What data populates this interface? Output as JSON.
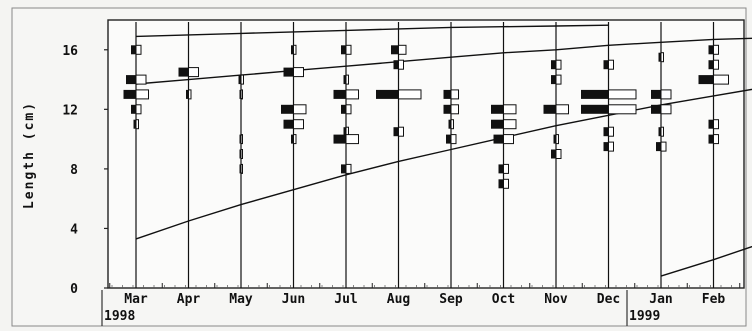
{
  "chart_data": {
    "type": "length-frequency histogram with growth curves",
    "ylabel": "Length (cm)",
    "ylim": [
      0,
      18
    ],
    "yticks": [
      0,
      4,
      8,
      12,
      16
    ],
    "months": [
      "Mar",
      "Apr",
      "May",
      "Jun",
      "Jul",
      "Aug",
      "Sep",
      "Oct",
      "Nov",
      "Dec",
      "Jan",
      "Feb"
    ],
    "year_labels": [
      {
        "label": "1998",
        "month_index": 0
      },
      {
        "label": "1999",
        "month_index": 10
      }
    ],
    "samples": [
      {
        "month": "Mar",
        "bars": [
          {
            "len": 16,
            "f": 1
          },
          {
            "len": 14,
            "f": 2
          },
          {
            "len": 13,
            "f": 2.5
          },
          {
            "len": 12,
            "f": 1
          },
          {
            "len": 11,
            "f": 0.5
          }
        ]
      },
      {
        "month": "Apr",
        "bars": [
          {
            "len": 14.5,
            "f": 2
          },
          {
            "len": 13,
            "f": 0.5
          }
        ]
      },
      {
        "month": "May",
        "bars": [
          {
            "len": 14,
            "f": 0.5
          },
          {
            "len": 13,
            "f": 0.3
          },
          {
            "len": 10,
            "f": 0.3
          },
          {
            "len": 9,
            "f": 0.3
          },
          {
            "len": 8,
            "f": 0.3
          }
        ]
      },
      {
        "month": "Jun",
        "bars": [
          {
            "len": 16,
            "f": 0.5
          },
          {
            "len": 14.5,
            "f": 2
          },
          {
            "len": 12,
            "f": 2.5
          },
          {
            "len": 11,
            "f": 2
          },
          {
            "len": 10,
            "f": 0.5
          }
        ]
      },
      {
        "month": "Jul",
        "bars": [
          {
            "len": 16,
            "f": 1
          },
          {
            "len": 14,
            "f": 0.5
          },
          {
            "len": 13,
            "f": 2.5
          },
          {
            "len": 12,
            "f": 1
          },
          {
            "len": 10.5,
            "f": 0.5
          },
          {
            "len": 10,
            "f": 2.5
          },
          {
            "len": 8,
            "f": 1
          }
        ]
      },
      {
        "month": "Aug",
        "bars": [
          {
            "len": 16,
            "f": 1.5
          },
          {
            "len": 15,
            "f": 1
          },
          {
            "len": 13,
            "f": 4.5
          },
          {
            "len": 10.5,
            "f": 1
          }
        ]
      },
      {
        "month": "Sep",
        "bars": [
          {
            "len": 13,
            "f": 1.5
          },
          {
            "len": 12,
            "f": 1.5
          },
          {
            "len": 11,
            "f": 0.5
          },
          {
            "len": 10,
            "f": 1
          }
        ]
      },
      {
        "month": "Oct",
        "bars": [
          {
            "len": 12,
            "f": 2.5
          },
          {
            "len": 11,
            "f": 2.5
          },
          {
            "len": 10,
            "f": 2
          },
          {
            "len": 8,
            "f": 1
          },
          {
            "len": 7,
            "f": 1
          }
        ]
      },
      {
        "month": "Nov",
        "bars": [
          {
            "len": 15,
            "f": 1
          },
          {
            "len": 14,
            "f": 1
          },
          {
            "len": 12,
            "f": 2.5
          },
          {
            "len": 10,
            "f": 0.5
          },
          {
            "len": 9,
            "f": 1
          }
        ]
      },
      {
        "month": "Dec",
        "bars": [
          {
            "len": 15,
            "f": 1
          },
          {
            "len": 13,
            "f": 5.5
          },
          {
            "len": 12,
            "f": 5.5
          },
          {
            "len": 10.5,
            "f": 1
          },
          {
            "len": 9.5,
            "f": 1
          }
        ]
      },
      {
        "month": "Jan",
        "bars": [
          {
            "len": 15.5,
            "f": 0.5
          },
          {
            "len": 13,
            "f": 2
          },
          {
            "len": 12,
            "f": 2
          },
          {
            "len": 10.5,
            "f": 0.5
          },
          {
            "len": 9.5,
            "f": 1
          }
        ]
      },
      {
        "month": "Feb",
        "bars": [
          {
            "len": 16,
            "f": 1
          },
          {
            "len": 15,
            "f": 1
          },
          {
            "len": 14,
            "f": 3
          },
          {
            "len": 11,
            "f": 1
          },
          {
            "len": 10,
            "f": 1
          }
        ]
      }
    ],
    "growth_curves": [
      {
        "points": [
          [
            0,
            3.3
          ],
          [
            1,
            4.5
          ],
          [
            2,
            5.6
          ],
          [
            3,
            6.6
          ],
          [
            4,
            7.6
          ],
          [
            5,
            8.5
          ],
          [
            6,
            9.3
          ],
          [
            7,
            10.1
          ],
          [
            8,
            10.9
          ],
          [
            9,
            11.6
          ],
          [
            10,
            12.3
          ],
          [
            11,
            12.9
          ],
          [
            12,
            13.5
          ]
        ]
      },
      {
        "points": [
          [
            0,
            13.7
          ],
          [
            1,
            14.0
          ],
          [
            2,
            14.3
          ],
          [
            3,
            14.6
          ],
          [
            4,
            14.9
          ],
          [
            5,
            15.2
          ],
          [
            6,
            15.5
          ],
          [
            7,
            15.8
          ],
          [
            8,
            16.0
          ],
          [
            9,
            16.3
          ],
          [
            10,
            16.5
          ],
          [
            11,
            16.7
          ],
          [
            12,
            16.8
          ]
        ]
      },
      {
        "points": [
          [
            0,
            16.9
          ],
          [
            1,
            17.0
          ],
          [
            2,
            17.1
          ],
          [
            3,
            17.2
          ],
          [
            4,
            17.3
          ],
          [
            5,
            17.4
          ],
          [
            6,
            17.5
          ],
          [
            7,
            17.55
          ],
          [
            8,
            17.6
          ],
          [
            9,
            17.65
          ]
        ]
      },
      {
        "points": [
          [
            10,
            0.8
          ],
          [
            11,
            1.9
          ],
          [
            12,
            3.1
          ]
        ]
      }
    ]
  }
}
